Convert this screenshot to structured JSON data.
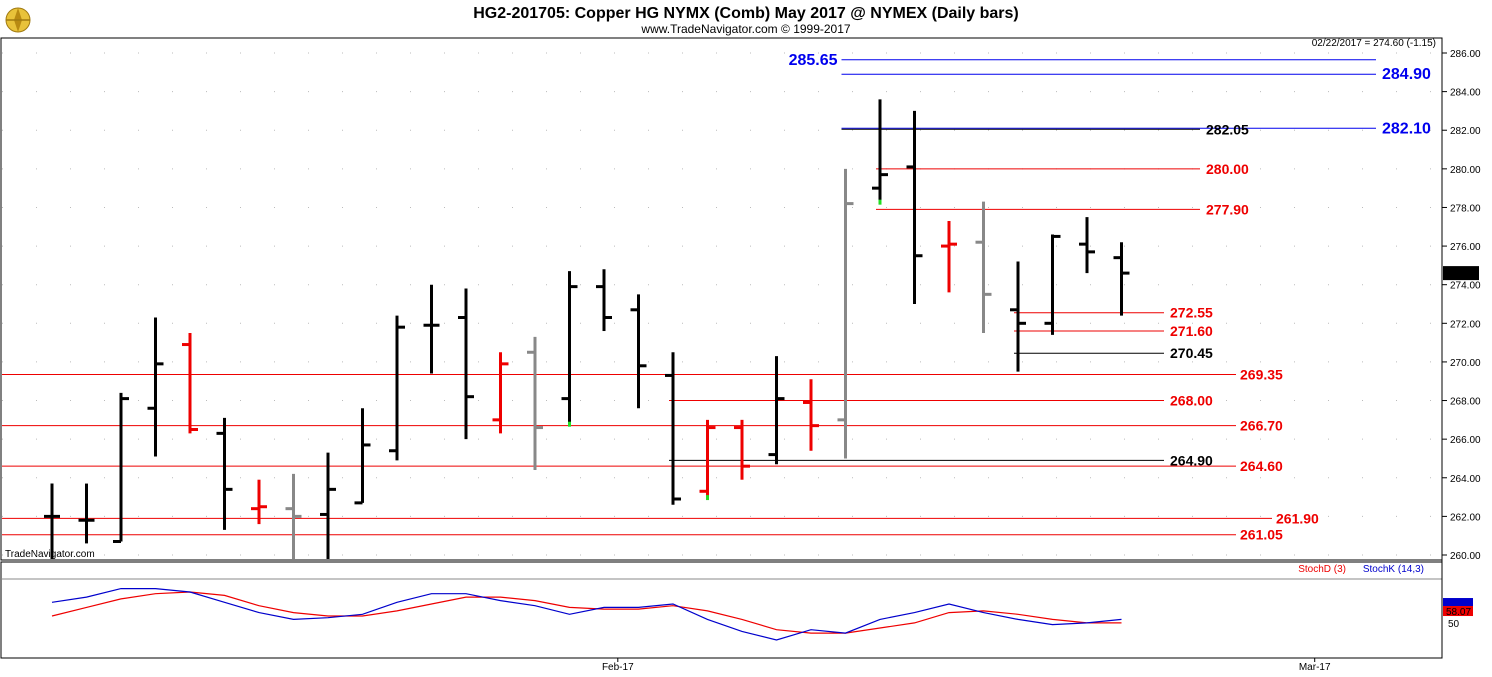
{
  "header": {
    "title": "HG2-201705:  Copper HG NYMX (Comb) May 2017 @ NYMEX  (Daily bars)",
    "subtitle": "www.TradeNavigator.com © 1999-2017",
    "watermark": "TradeNavigator.com",
    "logo": "tradenavigator-logo-icon"
  },
  "chart_data": {
    "type": "ohlc",
    "price_info": "02/22/2017 = 274.60 (-1.15)",
    "last_price": "274.60",
    "ylim": [
      259.5,
      287.0
    ],
    "yticks": [
      "260.00",
      "262.00",
      "264.00",
      "266.00",
      "268.00",
      "270.00",
      "272.00",
      "274.00",
      "276.00",
      "278.00",
      "280.00",
      "282.00",
      "284.00",
      "286.00"
    ],
    "x_labels": [
      {
        "label": "Feb-17",
        "bar": 16.4
      },
      {
        "label": "Mar-17",
        "bar": 36.6
      }
    ],
    "bars": [
      {
        "o": 262.0,
        "h": 263.7,
        "l": 259.5,
        "c": 262.0,
        "color": "black"
      },
      {
        "o": 261.8,
        "h": 263.7,
        "l": 260.6,
        "c": 261.8,
        "color": "black"
      },
      {
        "o": 260.7,
        "h": 268.4,
        "l": 260.7,
        "c": 268.1,
        "color": "black"
      },
      {
        "o": 267.6,
        "h": 272.3,
        "l": 265.1,
        "c": 269.9,
        "color": "black"
      },
      {
        "o": 270.9,
        "h": 271.5,
        "l": 266.3,
        "c": 266.5,
        "color": "red"
      },
      {
        "o": 266.3,
        "h": 267.1,
        "l": 261.3,
        "c": 263.4,
        "color": "black"
      },
      {
        "o": 262.4,
        "h": 263.9,
        "l": 261.6,
        "c": 262.5,
        "color": "red"
      },
      {
        "o": 262.4,
        "h": 264.2,
        "l": 259.5,
        "c": 262.0,
        "color": "gray"
      },
      {
        "o": 262.1,
        "h": 265.3,
        "l": 259.5,
        "c": 263.4,
        "color": "black"
      },
      {
        "o": 262.7,
        "h": 267.6,
        "l": 262.7,
        "c": 265.7,
        "color": "black"
      },
      {
        "o": 265.4,
        "h": 272.4,
        "l": 264.9,
        "c": 271.8,
        "color": "black"
      },
      {
        "o": 271.9,
        "h": 274.0,
        "l": 269.4,
        "c": 271.9,
        "color": "black"
      },
      {
        "o": 272.3,
        "h": 273.8,
        "l": 266.0,
        "c": 268.2,
        "color": "black"
      },
      {
        "o": 267.0,
        "h": 270.5,
        "l": 266.3,
        "c": 269.9,
        "color": "red"
      },
      {
        "o": 270.5,
        "h": 271.3,
        "l": 264.4,
        "c": 266.6,
        "color": "gray"
      },
      {
        "o": 268.1,
        "h": 274.7,
        "l": 266.8,
        "c": 273.9,
        "color": "black",
        "signal": "green"
      },
      {
        "o": 273.9,
        "h": 274.8,
        "l": 271.6,
        "c": 272.3,
        "color": "black"
      },
      {
        "o": 272.7,
        "h": 273.5,
        "l": 267.6,
        "c": 269.8,
        "color": "black"
      },
      {
        "o": 269.3,
        "h": 270.5,
        "l": 262.6,
        "c": 262.9,
        "color": "black"
      },
      {
        "o": 263.3,
        "h": 267.0,
        "l": 263.0,
        "c": 266.6,
        "color": "red",
        "signal": "green"
      },
      {
        "o": 266.6,
        "h": 267.0,
        "l": 263.9,
        "c": 264.6,
        "color": "red"
      },
      {
        "o": 265.2,
        "h": 270.3,
        "l": 264.7,
        "c": 268.1,
        "color": "black"
      },
      {
        "o": 267.9,
        "h": 269.1,
        "l": 265.4,
        "c": 266.7,
        "color": "red"
      },
      {
        "o": 267.0,
        "h": 280.0,
        "l": 265.0,
        "c": 278.2,
        "color": "gray"
      },
      {
        "o": 279.0,
        "h": 283.6,
        "l": 278.3,
        "c": 279.7,
        "color": "black",
        "signal": "green"
      },
      {
        "o": 280.1,
        "h": 283.0,
        "l": 273.0,
        "c": 275.5,
        "color": "black"
      },
      {
        "o": 276.0,
        "h": 277.3,
        "l": 273.6,
        "c": 276.1,
        "color": "red"
      },
      {
        "o": 276.2,
        "h": 278.3,
        "l": 271.5,
        "c": 273.5,
        "color": "gray"
      },
      {
        "o": 272.7,
        "h": 275.2,
        "l": 269.5,
        "c": 272.0,
        "color": "black"
      },
      {
        "o": 272.0,
        "h": 276.6,
        "l": 271.4,
        "c": 276.5,
        "color": "black"
      },
      {
        "o": 276.1,
        "h": 277.5,
        "l": 274.6,
        "c": 275.7,
        "color": "black"
      },
      {
        "o": 275.4,
        "h": 276.2,
        "l": 272.4,
        "c": 274.6,
        "color": "black"
      }
    ],
    "levels": [
      {
        "value": 285.65,
        "label": "285.65",
        "color": "#0000ee",
        "label_pos": "left",
        "start_bar": 23,
        "size": "big"
      },
      {
        "value": 284.9,
        "label": "284.90",
        "color": "#0000ee",
        "label_pos": "right",
        "start_bar": 23,
        "size": "big"
      },
      {
        "value": 282.1,
        "label": "282.10",
        "color": "#0000ee",
        "label_pos": "right",
        "start_bar": 23,
        "size": "big"
      },
      {
        "value": 282.05,
        "label": "282.05",
        "color": "#000000",
        "label_pos": "mid",
        "start_bar": 23,
        "size": "normal"
      },
      {
        "value": 280.0,
        "label": "280.00",
        "color": "#ee0000",
        "label_pos": "mid",
        "start_bar": 24,
        "size": "normal"
      },
      {
        "value": 277.9,
        "label": "277.90",
        "color": "#ee0000",
        "label_pos": "mid",
        "start_bar": 24,
        "size": "normal"
      },
      {
        "value": 272.55,
        "label": "272.55",
        "color": "#ee0000",
        "label_pos": "near",
        "start_bar": 28,
        "size": "normal"
      },
      {
        "value": 271.6,
        "label": "271.60",
        "color": "#ee0000",
        "label_pos": "near",
        "start_bar": 28,
        "size": "normal"
      },
      {
        "value": 270.45,
        "label": "270.45",
        "color": "#000000",
        "label_pos": "near",
        "start_bar": 28,
        "size": "normal"
      },
      {
        "value": 269.35,
        "label": "269.35",
        "color": "#ee0000",
        "label_pos": "far",
        "start_bar": -1,
        "size": "normal"
      },
      {
        "value": 268.0,
        "label": "268.00",
        "color": "#ee0000",
        "label_pos": "mid2",
        "start_bar": 18,
        "size": "normal"
      },
      {
        "value": 266.7,
        "label": "266.70",
        "color": "#ee0000",
        "label_pos": "far",
        "start_bar": -1,
        "size": "normal"
      },
      {
        "value": 264.9,
        "label": "264.90",
        "color": "#000000",
        "label_pos": "mid2",
        "start_bar": 18,
        "size": "normal"
      },
      {
        "value": 264.6,
        "label": "264.60",
        "color": "#ee0000",
        "label_pos": "far",
        "start_bar": -1,
        "size": "normal"
      },
      {
        "value": 261.9,
        "label": "261.90",
        "color": "#ee0000",
        "label_pos": "farther",
        "start_bar": -1,
        "size": "normal"
      },
      {
        "value": 261.05,
        "label": "261.05",
        "color": "#ee0000",
        "label_pos": "far",
        "start_bar": -1,
        "size": "normal"
      }
    ],
    "indicator": {
      "stochd_label": "StochD (3)",
      "stochk_label": "StochK (14,3)",
      "value_label": "58.07",
      "ref_label": "50",
      "stochk": [
        62,
        65,
        70,
        70,
        68,
        62,
        56,
        52,
        53,
        55,
        62,
        67,
        67,
        63,
        60,
        55,
        59,
        59,
        61,
        52,
        45,
        40,
        46,
        44,
        52,
        56,
        61,
        56,
        52,
        49,
        50,
        52
      ],
      "stochd": [
        54,
        59,
        64,
        67,
        68,
        66,
        60,
        56,
        54,
        54,
        57,
        61,
        65,
        65,
        63,
        59,
        58,
        58,
        60,
        57,
        52,
        46,
        44,
        44,
        47,
        50,
        56,
        57,
        55,
        52,
        50,
        50
      ]
    }
  }
}
